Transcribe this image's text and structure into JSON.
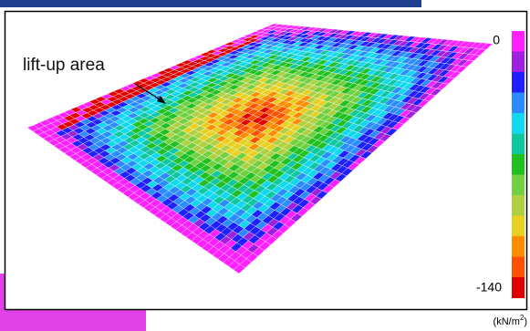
{
  "annotation": "lift-up area",
  "colorbar": {
    "max_label": "0",
    "min_label": "-140"
  },
  "units": {
    "base": "(kN/m",
    "exponent": "2",
    "close": ")"
  }
}
